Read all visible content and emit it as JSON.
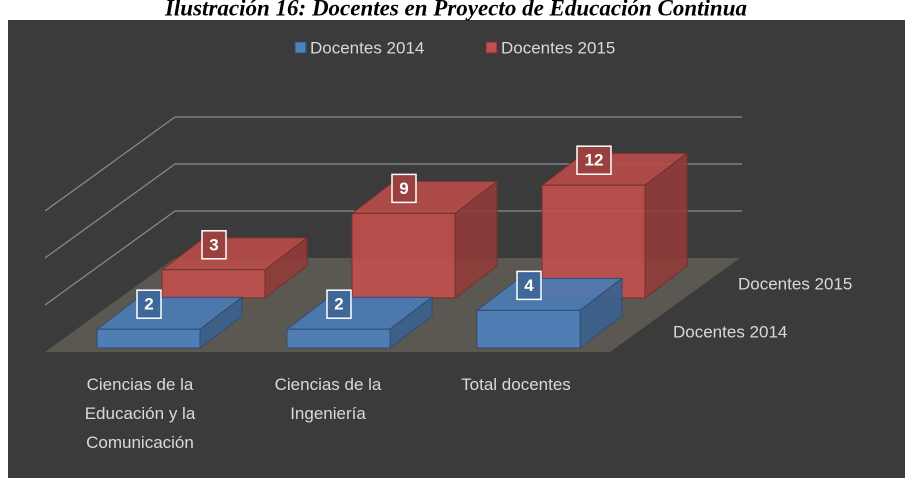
{
  "chart_data": {
    "type": "bar3d",
    "title": "Ilustración 16: Docentes en Proyecto de Educación Continua",
    "categories": [
      "Ciencias de la Educación y la Comunicación",
      "Ciencias de la Ingeniería",
      "Total docentes"
    ],
    "series": [
      {
        "name": "Docentes 2014",
        "color": "#4f81bd",
        "values": [
          2,
          2,
          4
        ]
      },
      {
        "name": "Docentes 2015",
        "color": "#c0504d",
        "values": [
          3,
          9,
          12
        ]
      }
    ],
    "ylim": [
      0,
      15
    ],
    "yticks": [
      0,
      5,
      10,
      15
    ],
    "grid": true,
    "legend": "top"
  }
}
